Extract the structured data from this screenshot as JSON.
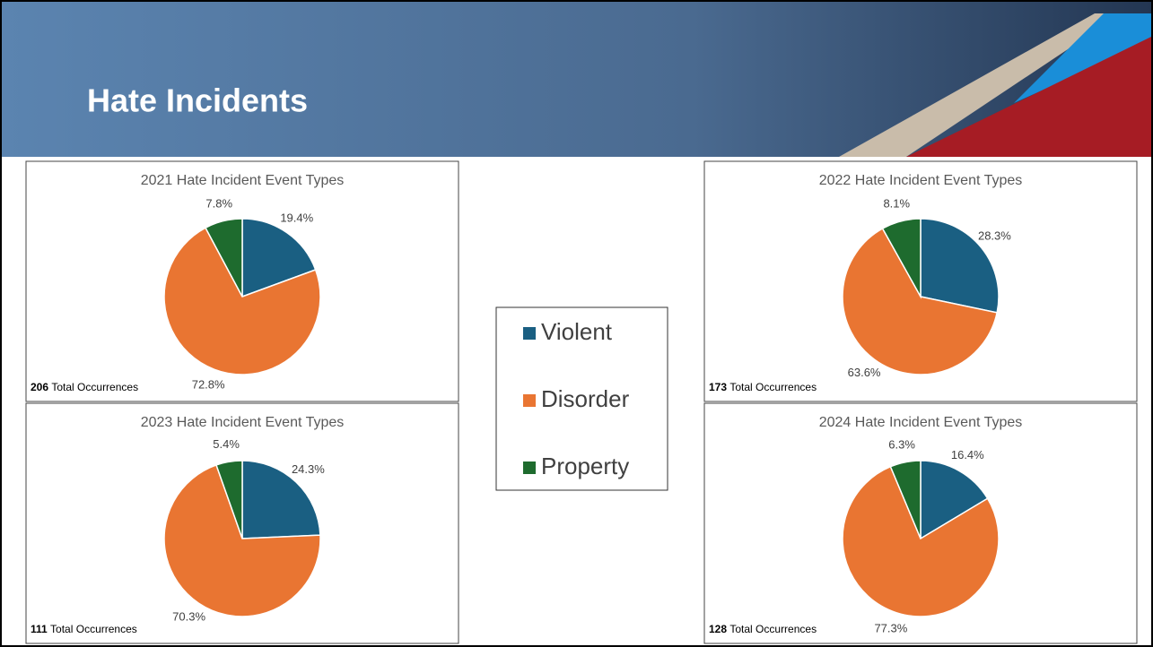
{
  "title": "Hate Incidents",
  "chart_data": [
    {
      "type": "pie",
      "title": "2021 Hate Incident Event Types",
      "categories": [
        "Violent",
        "Disorder",
        "Property"
      ],
      "values": [
        19.4,
        72.8,
        7.8
      ],
      "value_labels": [
        "19.4%",
        "72.8%",
        "7.8%"
      ],
      "colors": [
        "#1a5f82",
        "#e97532",
        "#1e6b2e"
      ],
      "total": 206,
      "total_label": "Total Occurrences"
    },
    {
      "type": "pie",
      "title": "2023 Hate Incident Event Types",
      "categories": [
        "Violent",
        "Disorder",
        "Property"
      ],
      "values": [
        24.3,
        70.3,
        5.4
      ],
      "value_labels": [
        "24.3%",
        "70.3%",
        "5.4%"
      ],
      "colors": [
        "#1a5f82",
        "#e97532",
        "#1e6b2e"
      ],
      "total": 111,
      "total_label": "Total Occurrences"
    },
    {
      "type": "pie",
      "title": "2022 Hate Incident Event Types",
      "categories": [
        "Violent",
        "Disorder",
        "Property"
      ],
      "values": [
        28.3,
        63.6,
        8.1
      ],
      "value_labels": [
        "28.3%",
        "63.6%",
        "8.1%"
      ],
      "colors": [
        "#1a5f82",
        "#e97532",
        "#1e6b2e"
      ],
      "total": 173,
      "total_label": "Total Occurrences"
    },
    {
      "type": "pie",
      "title": "2024 Hate Incident Event Types",
      "categories": [
        "Violent",
        "Disorder",
        "Property"
      ],
      "values": [
        16.4,
        77.3,
        6.3
      ],
      "value_labels": [
        "16.4%",
        "77.3%",
        "6.3%"
      ],
      "colors": [
        "#1a5f82",
        "#e97532",
        "#1e6b2e"
      ],
      "total": 128,
      "total_label": "Total Occurrences"
    }
  ]
}
